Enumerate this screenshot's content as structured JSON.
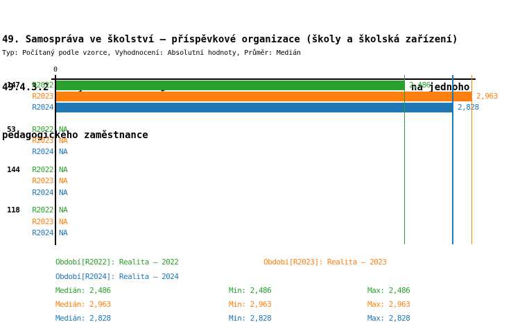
{
  "header": {
    "title_line1": "49. Samospráva ve školství – příspěvkové organizace (školy a školská zařízení)",
    "title_line2": "49.4.3.2 Školy zřízené dle § 16 odst. 9 školského zákona – Počet žáků na jednoho",
    "title_line3": "pedagogického zaměstnance",
    "subtitle": "Typ: Počítaný podle vzorce, Vyhodnocení: Absolutní hodnoty, Průměr: Medián"
  },
  "colors": {
    "R2022": "#2ca02c",
    "R2023": "#ff7f0e",
    "R2024": "#1f77b4",
    "axis": "#000000",
    "background": "#ffffff",
    "title_text": "#000000"
  },
  "chart_data": {
    "type": "bar",
    "orientation": "horizontal",
    "grid": false,
    "value_axis": {
      "origin_label": "0",
      "min": 0,
      "max_shown": 2.963
    },
    "series": [
      "R2022",
      "R2023",
      "R2024"
    ],
    "na_text": "NA",
    "groups": [
      {
        "label": "147",
        "bars": [
          {
            "series": "R2022",
            "value": 2.486,
            "display": "2,486"
          },
          {
            "series": "R2023",
            "value": 2.963,
            "display": "2,963"
          },
          {
            "series": "R2024",
            "value": 2.828,
            "display": "2,828"
          }
        ]
      },
      {
        "label": "53",
        "bars": [
          {
            "series": "R2022",
            "value": null,
            "display": "NA"
          },
          {
            "series": "R2023",
            "value": null,
            "display": "NA"
          },
          {
            "series": "R2024",
            "value": null,
            "display": "NA"
          }
        ]
      },
      {
        "label": "144",
        "bars": [
          {
            "series": "R2022",
            "value": null,
            "display": "NA"
          },
          {
            "series": "R2023",
            "value": null,
            "display": "NA"
          },
          {
            "series": "R2024",
            "value": null,
            "display": "NA"
          }
        ]
      },
      {
        "label": "118",
        "bars": [
          {
            "series": "R2022",
            "value": null,
            "display": "NA"
          },
          {
            "series": "R2023",
            "value": null,
            "display": "NA"
          },
          {
            "series": "R2024",
            "value": null,
            "display": "NA"
          }
        ]
      }
    ],
    "median_lines": [
      {
        "series": "R2022",
        "value": 2.486
      },
      {
        "series": "R2024",
        "value": 2.828
      },
      {
        "series": "R2023",
        "value": 2.963
      }
    ],
    "stats": [
      {
        "series": "R2022",
        "median": 2.486,
        "min": 2.486,
        "max": 2.486
      },
      {
        "series": "R2023",
        "median": 2.963,
        "min": 2.963,
        "max": 2.963
      },
      {
        "series": "R2024",
        "median": 2.828,
        "min": 2.828,
        "max": 2.828
      }
    ]
  },
  "legend": {
    "periods": [
      {
        "text": "Období[R2022]: Realita – 2022",
        "series": "R2022"
      },
      {
        "text": "Období[R2023]: Realita – 2023",
        "series": "R2023"
      },
      {
        "text": "Období[R2024]: Realita – 2024",
        "series": "R2024"
      }
    ],
    "stats": [
      {
        "series": "R2022",
        "median": "Medián: 2,486",
        "min": "Min: 2,486",
        "max": "Max: 2,486"
      },
      {
        "series": "R2023",
        "median": "Medián: 2,963",
        "min": "Min: 2,963",
        "max": "Max: 2,963"
      },
      {
        "series": "R2024",
        "median": "Medián: 2,828",
        "min": "Min: 2,828",
        "max": "Max: 2,828"
      }
    ]
  }
}
